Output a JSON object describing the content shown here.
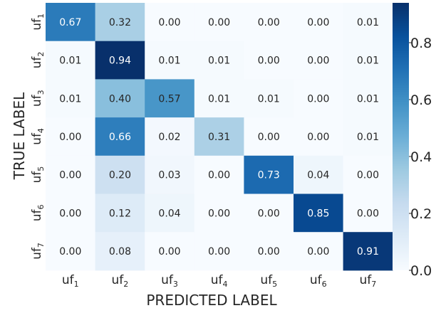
{
  "chart_data": {
    "type": "heatmap",
    "title": "",
    "xlabel": "PREDICTED LABEL",
    "ylabel": "TRUE LABEL",
    "x_categories": [
      {
        "base": "uf",
        "sub": "1"
      },
      {
        "base": "uf",
        "sub": "2"
      },
      {
        "base": "uf",
        "sub": "3"
      },
      {
        "base": "uf",
        "sub": "4"
      },
      {
        "base": "uf",
        "sub": "5"
      },
      {
        "base": "uf",
        "sub": "6"
      },
      {
        "base": "uf",
        "sub": "7"
      }
    ],
    "y_categories": [
      {
        "base": "uf",
        "sub": "1"
      },
      {
        "base": "uf",
        "sub": "2"
      },
      {
        "base": "uf",
        "sub": "3"
      },
      {
        "base": "uf",
        "sub": "4"
      },
      {
        "base": "uf",
        "sub": "5"
      },
      {
        "base": "uf",
        "sub": "6"
      },
      {
        "base": "uf",
        "sub": "7"
      }
    ],
    "values": [
      [
        0.67,
        0.32,
        0.0,
        0.0,
        0.0,
        0.0,
        0.01
      ],
      [
        0.01,
        0.94,
        0.01,
        0.01,
        0.0,
        0.0,
        0.01
      ],
      [
        0.01,
        0.4,
        0.57,
        0.01,
        0.01,
        0.0,
        0.01
      ],
      [
        0.0,
        0.66,
        0.02,
        0.31,
        0.0,
        0.0,
        0.01
      ],
      [
        0.0,
        0.2,
        0.03,
        0.0,
        0.73,
        0.04,
        0.0
      ],
      [
        0.0,
        0.12,
        0.04,
        0.0,
        0.0,
        0.85,
        0.0
      ],
      [
        0.0,
        0.08,
        0.0,
        0.0,
        0.0,
        0.0,
        0.91
      ]
    ],
    "value_format": "0.00",
    "colormap": "Blues",
    "colorbar": {
      "range": [
        0.0,
        0.94
      ],
      "ticks": [
        "0.0",
        "0.2",
        "0.4",
        "0.6",
        "0.8"
      ],
      "tick_values": [
        0.0,
        0.2,
        0.4,
        0.6,
        0.8
      ]
    },
    "grid": false
  }
}
